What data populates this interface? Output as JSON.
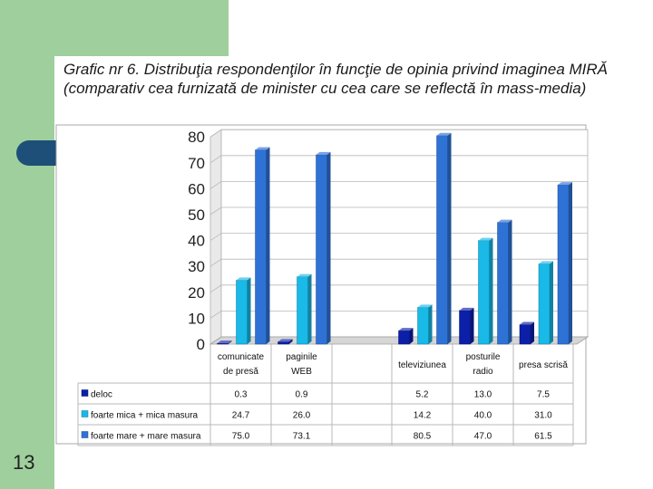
{
  "slide": {
    "page_number": "13",
    "title": "Grafic nr 6. Distribuţia respondenţilor în funcţie de opinia privind imaginea MIRĂ (comparativ cea furnizată de minister cu cea care se reflectă în mass-media)"
  },
  "colors": {
    "sidebar": "#9fcf9c",
    "tab": "#1d4f79"
  },
  "chart_data": {
    "type": "bar",
    "title": "",
    "xlabel": "",
    "ylabel": "",
    "ylim": [
      0,
      80
    ],
    "yticks": [
      0,
      10,
      20,
      30,
      40,
      50,
      60,
      70,
      80
    ],
    "grid": true,
    "legend": "table-below",
    "categories": [
      [
        "comunicate",
        "de presă"
      ],
      [
        "paginile",
        "WEB"
      ],
      [
        ""
      ],
      [
        "televiziunea"
      ],
      [
        "posturile",
        "radio"
      ],
      [
        "presa scrisă"
      ]
    ],
    "series": [
      {
        "name": "deloc",
        "color": "#0b1fa8",
        "values": [
          0.3,
          0.9,
          null,
          5.2,
          13.0,
          7.5
        ],
        "labels": [
          "0.3",
          "0.9",
          "",
          "5.2",
          "13.0",
          "7.5"
        ]
      },
      {
        "name": "foarte mica + mica masura",
        "color": "#19b9e8",
        "values": [
          24.7,
          26.0,
          null,
          14.2,
          40.0,
          31.0
        ],
        "labels": [
          "24.7",
          "26.0",
          "",
          "14.2",
          "40.0",
          "31.0"
        ]
      },
      {
        "name": "foarte mare + mare masura",
        "color": "#2f72d6",
        "values": [
          75.0,
          73.1,
          null,
          80.5,
          47.0,
          61.5
        ],
        "labels": [
          "75.0",
          "73.1",
          "",
          "80.5",
          "47.0",
          "61.5"
        ]
      }
    ]
  }
}
